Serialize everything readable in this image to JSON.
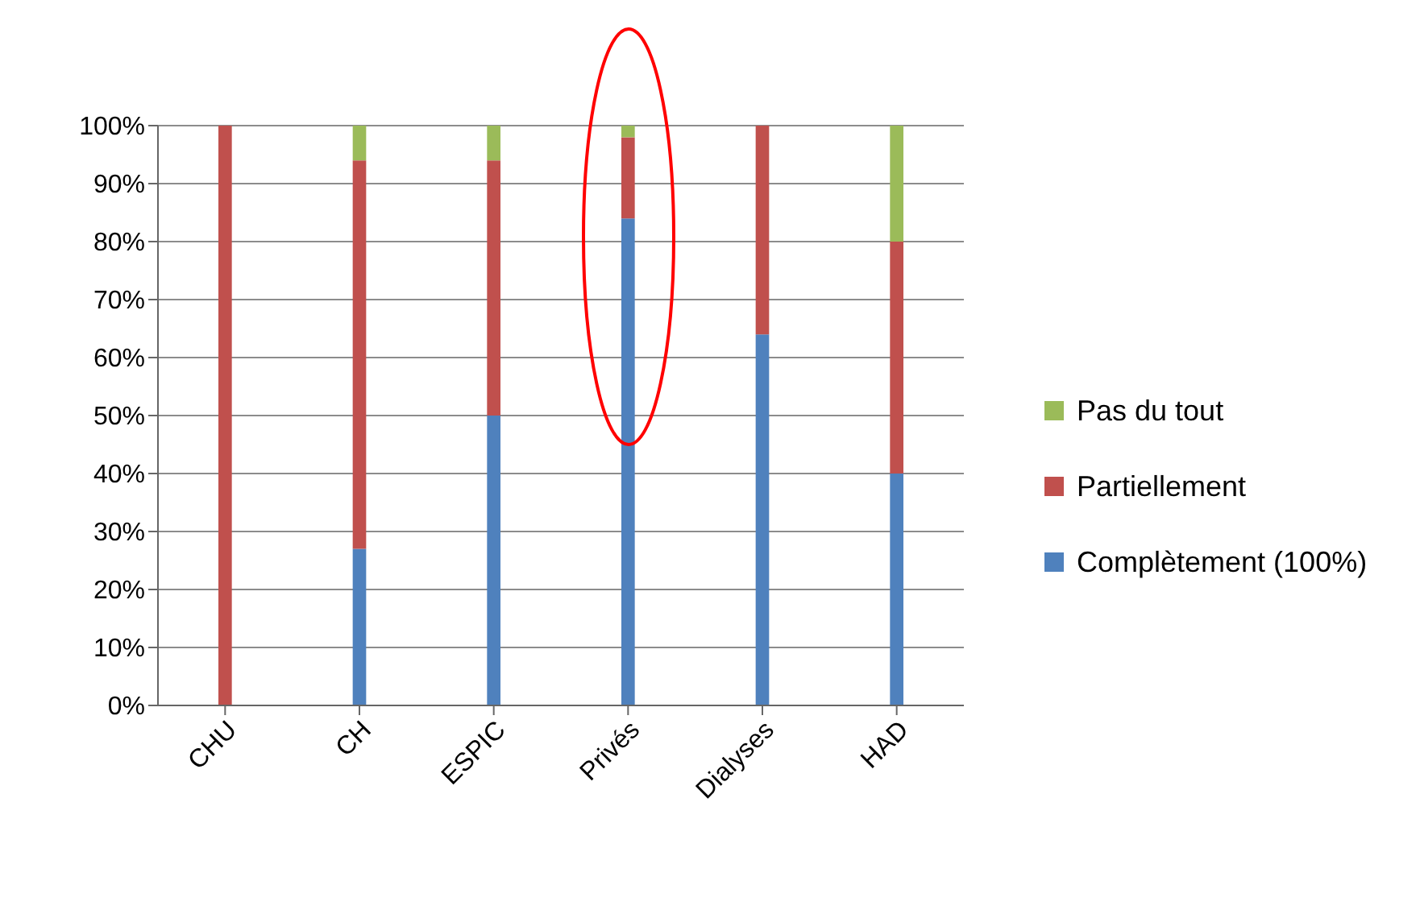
{
  "chart_data": {
    "type": "bar",
    "stacked": true,
    "categories": [
      "CHU",
      "CH",
      "ESPIC",
      "Privés",
      "Dialyses",
      "HAD"
    ],
    "series": [
      {
        "name": "Complètement (100%)",
        "color": "#4f81bd",
        "values": [
          0,
          27,
          50,
          84,
          64,
          40
        ]
      },
      {
        "name": "Partiellement",
        "color": "#c0504d",
        "values": [
          100,
          67,
          44,
          14,
          36,
          40
        ]
      },
      {
        "name": "Pas du tout",
        "color": "#9bbb59",
        "values": [
          0,
          6,
          6,
          2,
          0,
          20
        ]
      }
    ],
    "ylim": [
      0,
      100
    ],
    "yticks": [
      {
        "value": 0,
        "label": "0%"
      },
      {
        "value": 10,
        "label": "10%"
      },
      {
        "value": 20,
        "label": "20%"
      },
      {
        "value": 30,
        "label": "30%"
      },
      {
        "value": 40,
        "label": "40%"
      },
      {
        "value": 50,
        "label": "50%"
      },
      {
        "value": 60,
        "label": "60%"
      },
      {
        "value": 70,
        "label": "70%"
      },
      {
        "value": 80,
        "label": "80%"
      },
      {
        "value": 90,
        "label": "90%"
      },
      {
        "value": 100,
        "label": "100%"
      }
    ],
    "grid": "y",
    "legend": "right"
  }
}
